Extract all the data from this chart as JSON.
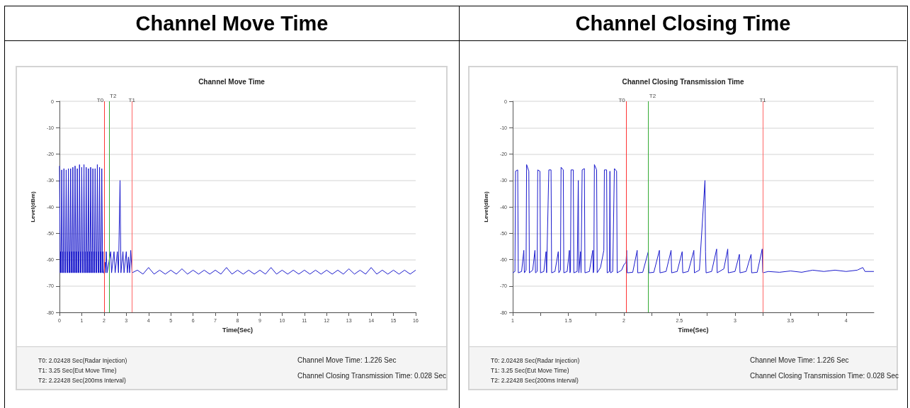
{
  "chart_data": [
    {
      "type": "line",
      "title": "Channel Move Time",
      "subtitle": "Channel Move Time",
      "xlabel": "Time(Sec)",
      "ylabel": "Level(dBm)",
      "xlim": [
        0,
        16
      ],
      "xticks": [
        0,
        1,
        2,
        3,
        4,
        5,
        6,
        7,
        8,
        9,
        10,
        11,
        12,
        13,
        14,
        15,
        16
      ],
      "ylim": [
        -80,
        0
      ],
      "yticks": [
        -80,
        -70,
        -60,
        -50,
        -40,
        -30,
        -20,
        -10,
        0
      ],
      "grid": "y",
      "series": [
        {
          "color": "#1a1acc",
          "x": [
            0,
            0.035,
            0.05,
            0.07,
            0.1,
            0.135,
            0.15,
            0.17,
            0.2,
            0.235,
            0.25,
            0.27,
            0.3,
            0.335,
            0.35,
            0.37,
            0.4,
            0.435,
            0.45,
            0.47,
            0.5,
            0.535,
            0.55,
            0.57,
            0.6,
            0.635,
            0.65,
            0.67,
            0.7,
            0.735,
            0.75,
            0.77,
            0.8,
            0.835,
            0.85,
            0.87,
            0.9,
            0.935,
            0.95,
            0.97,
            1.0,
            1.035,
            1.05,
            1.07,
            1.1,
            1.135,
            1.15,
            1.17,
            1.2,
            1.235,
            1.25,
            1.27,
            1.3,
            1.335,
            1.35,
            1.37,
            1.4,
            1.435,
            1.45,
            1.47,
            1.5,
            1.535,
            1.55,
            1.57,
            1.6,
            1.635,
            1.65,
            1.67,
            1.7,
            1.735,
            1.75,
            1.77,
            1.8,
            1.835,
            1.85,
            1.87,
            1.9,
            1.935,
            1.95,
            1.97,
            2.0,
            2.05,
            2.08,
            2.1,
            2.14,
            2.3,
            2.34,
            2.45,
            2.5,
            2.6,
            2.65,
            2.72,
            2.76,
            2.85,
            2.9,
            3.0,
            3.05,
            3.1,
            3.15,
            3.2,
            3.26,
            3.5,
            3.75,
            4.0,
            4.25,
            4.5,
            4.75,
            5.0,
            5.25,
            5.5,
            5.75,
            6.0,
            6.25,
            6.5,
            6.75,
            7.0,
            7.25,
            7.5,
            7.75,
            8.0,
            8.25,
            8.5,
            8.75,
            9.0,
            9.25,
            9.5,
            9.75,
            10.0,
            10.25,
            10.5,
            10.75,
            11.0,
            11.25,
            11.5,
            11.75,
            12.0,
            12.25,
            12.5,
            12.75,
            13.0,
            13.25,
            13.5,
            13.75,
            14.0,
            14.25,
            14.5,
            14.75,
            15.0,
            15.25,
            15.5,
            15.75,
            16.0
          ],
          "values": [
            -24.5,
            -65,
            -57,
            -65,
            -26,
            -65,
            -57,
            -65,
            -25.5,
            -65,
            -57,
            -65,
            -26,
            -65,
            -57,
            -65,
            -25.5,
            -65,
            -57,
            -65,
            -25.5,
            -65,
            -57,
            -65,
            -25,
            -65,
            -57,
            -65,
            -24.5,
            -65,
            -57,
            -65,
            -25.5,
            -65,
            -57,
            -65,
            -24,
            -65,
            -57,
            -65,
            -25,
            -65,
            -57,
            -65,
            -24,
            -65,
            -57,
            -65,
            -25,
            -65,
            -57,
            -65,
            -25.5,
            -65,
            -57,
            -65,
            -25,
            -65,
            -57,
            -65,
            -25.5,
            -65,
            -57,
            -65,
            -25.5,
            -65,
            -57,
            -65,
            -24,
            -65,
            -57,
            -65,
            -25,
            -65,
            -57,
            -65,
            -25.5,
            -65,
            -57,
            -65,
            -65,
            -61,
            -65,
            -57,
            -65,
            -57,
            -65,
            -57,
            -65,
            -57,
            -65,
            -30,
            -65,
            -57,
            -65,
            -57,
            -65,
            -59,
            -65,
            -56.5,
            -65,
            -64,
            -65.5,
            -63,
            -65.5,
            -64,
            -65.5,
            -64,
            -65.5,
            -63.5,
            -65.5,
            -64,
            -65.5,
            -64,
            -65.5,
            -64,
            -65.5,
            -63,
            -65.5,
            -64,
            -65.5,
            -64,
            -65.5,
            -64,
            -65.5,
            -63,
            -65.5,
            -64,
            -65.5,
            -64,
            -65.5,
            -64,
            -65.5,
            -64,
            -65.5,
            -64,
            -65.5,
            -64,
            -65.5,
            -63.5,
            -65.5,
            -64,
            -65.5,
            -63,
            -65.5,
            -64,
            -65.5,
            -64,
            -65.5,
            -64,
            -65.5,
            -64
          ]
        }
      ],
      "ref_lines": [
        {
          "axis": "x",
          "value": 2.02428,
          "label": "T0",
          "color": "#ff3333"
        },
        {
          "axis": "x",
          "value": 2.22428,
          "label": "T2",
          "color": "#33aa33"
        },
        {
          "axis": "x",
          "value": 3.25,
          "label": "T1",
          "color": "#ff6666"
        }
      ],
      "annotations": [
        "T0: 2.02428 Sec(Radar Injection)",
        "T1: 3.25 Sec(Eut Move Time)",
        "T2: 2.22428 Sec(200ms Interval)",
        "Channel Move Time: 1.226 Sec",
        "Channel Closing Transmission Time: 0.028 Sec"
      ]
    },
    {
      "type": "line",
      "title": "Channel Closing Time",
      "subtitle": "Channel Closing Transmission Time",
      "xlabel": "Time(Sec)",
      "ylabel": "Level(dBm)",
      "xlim": [
        1,
        4.25
      ],
      "xticks": [
        1,
        {
          "value": 1.25,
          "label": null
        },
        1.5,
        {
          "value": 1.75,
          "label": null
        },
        2,
        {
          "value": 2.25,
          "label": null
        },
        2.5,
        {
          "value": 2.75,
          "label": null
        },
        3,
        {
          "value": 3.25,
          "label": null
        },
        3.5,
        {
          "value": 3.75,
          "label": null
        },
        4
      ],
      "ylim": [
        -80,
        0
      ],
      "yticks": [
        -80,
        -70,
        -60,
        -50,
        -40,
        -30,
        -20,
        -10,
        0
      ],
      "grid": "y",
      "series": [
        {
          "color": "#1a1acc",
          "x": [
            1.0,
            1.02,
            1.025,
            1.045,
            1.05,
            1.08,
            1.1,
            1.105,
            1.12,
            1.125,
            1.145,
            1.15,
            1.18,
            1.2,
            1.205,
            1.22,
            1.225,
            1.245,
            1.25,
            1.28,
            1.3,
            1.305,
            1.325,
            1.345,
            1.35,
            1.38,
            1.41,
            1.415,
            1.43,
            1.435,
            1.455,
            1.46,
            1.49,
            1.51,
            1.515,
            1.52,
            1.525,
            1.545,
            1.55,
            1.58,
            1.59,
            1.595,
            1.61,
            1.615,
            1.625,
            1.645,
            1.65,
            1.69,
            1.72,
            1.725,
            1.73,
            1.735,
            1.755,
            1.76,
            1.79,
            1.82,
            1.825,
            1.845,
            1.85,
            1.87,
            1.875,
            1.88,
            1.9,
            1.915,
            1.935,
            1.94,
            1.98,
            2.0,
            2.02,
            2.025,
            2.03,
            2.08,
            2.12,
            2.125,
            2.17,
            2.22,
            2.225,
            2.27,
            2.32,
            2.325,
            2.38,
            2.425,
            2.43,
            2.48,
            2.525,
            2.53,
            2.58,
            2.63,
            2.635,
            2.68,
            2.73,
            2.735,
            2.74,
            2.79,
            2.835,
            2.84,
            2.9,
            2.935,
            2.94,
            3.0,
            3.04,
            3.045,
            3.1,
            3.145,
            3.15,
            3.2,
            3.245,
            3.25,
            3.3,
            3.4,
            3.5,
            3.6,
            3.7,
            3.8,
            3.9,
            4.0,
            4.1,
            4.15,
            4.17,
            4.25
          ],
          "values": [
            -65,
            -64.5,
            -26.5,
            -26,
            -65,
            -64.5,
            -56.5,
            -65,
            -64,
            -24,
            -26.5,
            -65,
            -64,
            -56.5,
            -65,
            -64.5,
            -26,
            -26.5,
            -65,
            -64.5,
            -57,
            -65,
            -26,
            -26,
            -65,
            -64.5,
            -57,
            -65,
            -64,
            -25,
            -26,
            -65,
            -64.5,
            -56.5,
            -65,
            -64.5,
            -26,
            -26,
            -65,
            -64.5,
            -30,
            -65,
            -57,
            -65,
            -26,
            -25.5,
            -65,
            -64.5,
            -56.5,
            -65,
            -64,
            -24,
            -26,
            -65,
            -63,
            -56.5,
            -26,
            -26,
            -65,
            -64.5,
            -26.5,
            -65,
            -64.5,
            -25.5,
            -26.5,
            -65,
            -64,
            -62,
            -61,
            -56.5,
            -65,
            -64.8,
            -56.5,
            -65,
            -64.8,
            -57,
            -65,
            -64.8,
            -56.5,
            -65,
            -64.5,
            -56.5,
            -65,
            -64.5,
            -57,
            -65,
            -64.5,
            -56.5,
            -65,
            -64,
            -30,
            -57,
            -65,
            -64.5,
            -56,
            -65,
            -63.5,
            -56,
            -65,
            -64.5,
            -58,
            -65,
            -64.5,
            -58,
            -65,
            -64.8,
            -56,
            -65,
            -64.5,
            -64.8,
            -64.3,
            -64.8,
            -64,
            -64.5,
            -64,
            -64.5,
            -64,
            -63,
            -64.5,
            -64.5
          ]
        }
      ],
      "ref_lines": [
        {
          "axis": "x",
          "value": 2.02428,
          "label": "T0",
          "color": "#ff3333"
        },
        {
          "axis": "x",
          "value": 2.22428,
          "label": "T2",
          "color": "#33aa33"
        },
        {
          "axis": "x",
          "value": 3.25,
          "label": "T1",
          "color": "#ff6666"
        }
      ],
      "annotations": [
        "T0: 2.02428 Sec(Radar Injection)",
        "T1: 3.25 Sec(Eut Move Time)",
        "T2: 2.22428 Sec(200ms Interval)",
        "Channel Move Time: 1.226 Sec",
        "Channel Closing Transmission Time: 0.028 Sec"
      ]
    }
  ]
}
